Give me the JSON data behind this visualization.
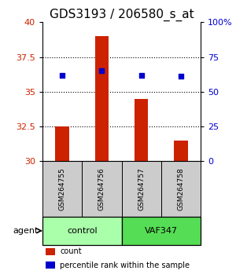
{
  "title": "GDS3193 / 206580_s_at",
  "samples": [
    "GSM264755",
    "GSM264756",
    "GSM264757",
    "GSM264758"
  ],
  "bar_values": [
    32.5,
    39.0,
    34.5,
    31.5
  ],
  "dot_values": [
    36.2,
    36.5,
    36.2,
    36.1
  ],
  "bar_bottom": 30.0,
  "ylim": [
    30,
    40
  ],
  "yticks_left": [
    30,
    32.5,
    35,
    37.5,
    40
  ],
  "yticks_right": [
    0,
    25,
    50,
    75,
    100
  ],
  "ytick_labels_right": [
    "0",
    "25",
    "50",
    "75",
    "100%"
  ],
  "hlines": [
    32.5,
    35,
    37.5
  ],
  "bar_color": "#cc2200",
  "dot_color": "#0000cc",
  "groups": [
    {
      "label": "control",
      "indices": [
        0,
        1
      ],
      "color": "#aaffaa"
    },
    {
      "label": "VAF347",
      "indices": [
        2,
        3
      ],
      "color": "#55dd55"
    }
  ],
  "group_label": "agent",
  "legend_items": [
    {
      "color": "#cc2200",
      "label": "count"
    },
    {
      "color": "#0000cc",
      "label": "percentile rank within the sample"
    }
  ],
  "xlabel_color_left": "#cc2200",
  "xlabel_color_right": "#0000cc",
  "title_fontsize": 11,
  "tick_fontsize": 8,
  "label_fontsize": 8
}
